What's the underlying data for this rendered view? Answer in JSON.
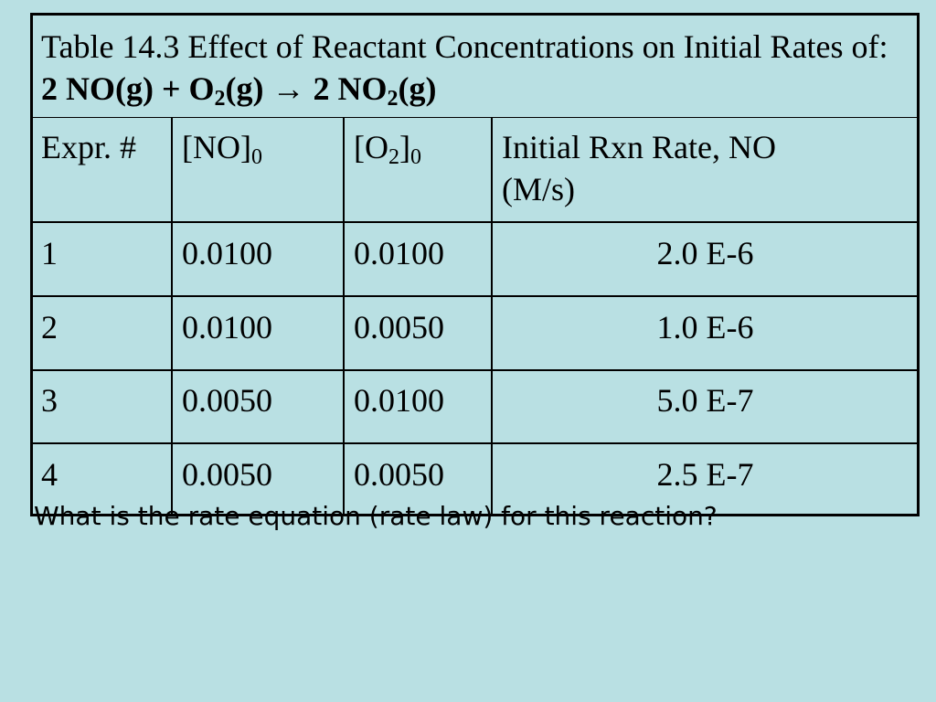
{
  "table": {
    "caption_prefix": "Table 14.3  Effect of Reactant Concentrations on Initial Rates of:",
    "reaction": {
      "part1": "2 NO(g) + O",
      "sub1": "2",
      "part2": "(g) → 2 NO",
      "sub2": "2",
      "part3": "(g)"
    },
    "headers": {
      "expr": "Expr. #",
      "no_main": "[NO]",
      "no_sub": "0",
      "o2_open": "[O",
      "o2_sub1": "2",
      "o2_close": "]",
      "o2_sub2": "0",
      "rate_line1": "Initial Rxn Rate, NO",
      "rate_line2": "(M/s)"
    },
    "rows": [
      {
        "expr": "1",
        "no": "0.0100",
        "o2": "0.0100",
        "rate": "2.0 E-6"
      },
      {
        "expr": "2",
        "no": "0.0100",
        "o2": "0.0050",
        "rate": "1.0 E-6"
      },
      {
        "expr": "3",
        "no": "0.0050",
        "o2": "0.0100",
        "rate": "5.0 E-7"
      },
      {
        "expr": "4",
        "no": "0.0050",
        "o2": "0.0050",
        "rate": "2.5 E-7"
      }
    ]
  },
  "question": "What is the rate equation (rate law) for this reaction?",
  "colors": {
    "background": "#b9e0e3",
    "border": "#000000",
    "text": "#000000"
  }
}
